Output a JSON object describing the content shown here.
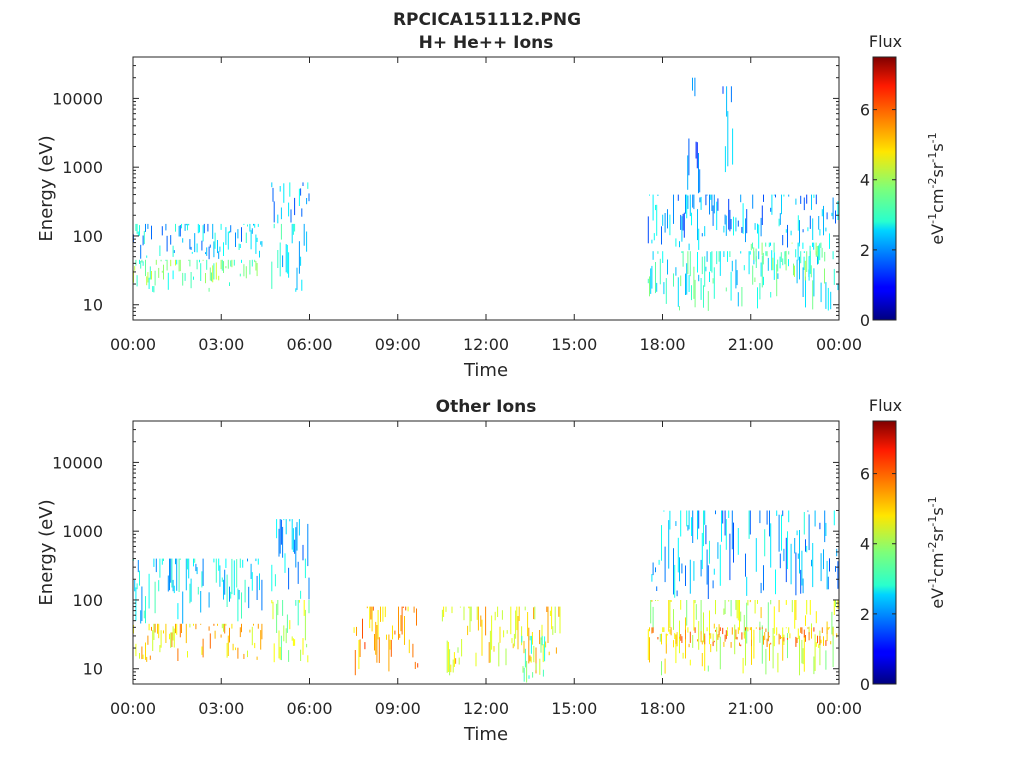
{
  "figure_title": "RPCICA151112.PNG",
  "chart_data": [
    {
      "type": "heatmap",
      "title": "H+ He++ Ions",
      "xlabel": "Time",
      "ylabel": "Energy (eV)",
      "x_ticks": [
        "00:00",
        "03:00",
        "06:00",
        "09:00",
        "12:00",
        "15:00",
        "18:00",
        "21:00",
        "00:00"
      ],
      "xlim_hours": [
        0,
        24
      ],
      "y_scale": "log",
      "ylim": [
        6,
        40000
      ],
      "y_ticks": [
        {
          "value": 10,
          "label": "10"
        },
        {
          "value": 100,
          "label": "100"
        },
        {
          "value": 1000,
          "label": "1000"
        },
        {
          "value": 10000,
          "label": "10000"
        }
      ],
      "colorbar": {
        "label": "Flux",
        "units_label": "eV-1cm-2sr-1s-1",
        "range": [
          0,
          7.5
        ],
        "ticks": [
          0,
          2,
          4,
          6
        ],
        "colormap": "jet"
      },
      "regions": [
        {
          "t_start": 0.0,
          "t_end": 4.4,
          "e_low": 15,
          "e_high": 45,
          "flux": 3.6
        },
        {
          "t_start": 0.0,
          "t_end": 4.4,
          "e_low": 45,
          "e_high": 150,
          "flux": 2.4
        },
        {
          "t_start": 4.7,
          "t_end": 6.0,
          "e_low": 15,
          "e_high": 150,
          "flux": 2.7
        },
        {
          "t_start": 4.7,
          "t_end": 6.0,
          "e_low": 150,
          "e_high": 600,
          "flux": 2.3
        },
        {
          "t_start": 17.5,
          "t_end": 24.0,
          "e_low": 8,
          "e_high": 60,
          "flux": 3.0
        },
        {
          "t_start": 17.5,
          "t_end": 24.0,
          "e_low": 60,
          "e_high": 400,
          "flux": 2.2
        },
        {
          "t_start": 18.8,
          "t_end": 19.3,
          "e_low": 400,
          "e_high": 20000,
          "flux": 1.9
        },
        {
          "t_start": 20.0,
          "t_end": 20.4,
          "e_low": 400,
          "e_high": 15000,
          "flux": 1.9
        },
        {
          "t_start": 21.0,
          "t_end": 23.5,
          "e_low": 20,
          "e_high": 80,
          "flux": 3.4
        }
      ]
    },
    {
      "type": "heatmap",
      "title": "Other Ions",
      "xlabel": "Time",
      "ylabel": "Energy (eV)",
      "x_ticks": [
        "00:00",
        "03:00",
        "06:00",
        "09:00",
        "12:00",
        "15:00",
        "18:00",
        "21:00",
        "00:00"
      ],
      "xlim_hours": [
        0,
        24
      ],
      "y_scale": "log",
      "ylim": [
        6,
        40000
      ],
      "y_ticks": [
        {
          "value": 10,
          "label": "10"
        },
        {
          "value": 100,
          "label": "100"
        },
        {
          "value": 1000,
          "label": "1000"
        },
        {
          "value": 10000,
          "label": "10000"
        }
      ],
      "colorbar": {
        "label": "Flux",
        "units_label": "eV-1cm-2sr-1s-1",
        "range": [
          0,
          7.5
        ],
        "ticks": [
          0,
          2,
          4,
          6
        ],
        "colormap": "jet"
      },
      "regions": [
        {
          "t_start": 0.0,
          "t_end": 4.4,
          "e_low": 12,
          "e_high": 45,
          "flux": 5.0
        },
        {
          "t_start": 0.0,
          "t_end": 4.4,
          "e_low": 45,
          "e_high": 400,
          "flux": 2.6
        },
        {
          "t_start": 4.7,
          "t_end": 6.0,
          "e_low": 12,
          "e_high": 100,
          "flux": 4.0
        },
        {
          "t_start": 4.7,
          "t_end": 6.0,
          "e_low": 100,
          "e_high": 1500,
          "flux": 2.3
        },
        {
          "t_start": 7.5,
          "t_end": 9.7,
          "e_low": 8,
          "e_high": 80,
          "flux": 5.4
        },
        {
          "t_start": 10.5,
          "t_end": 14.5,
          "e_low": 8,
          "e_high": 80,
          "flux": 4.8
        },
        {
          "t_start": 13.2,
          "t_end": 14.0,
          "e_low": 6,
          "e_high": 30,
          "flux": 3.6
        },
        {
          "t_start": 17.5,
          "t_end": 24.0,
          "e_low": 8,
          "e_high": 100,
          "flux": 4.4
        },
        {
          "t_start": 17.5,
          "t_end": 24.0,
          "e_low": 100,
          "e_high": 2000,
          "flux": 2.3
        },
        {
          "t_start": 17.5,
          "t_end": 24.0,
          "e_low": 20,
          "e_high": 40,
          "flux": 5.3
        }
      ]
    }
  ]
}
